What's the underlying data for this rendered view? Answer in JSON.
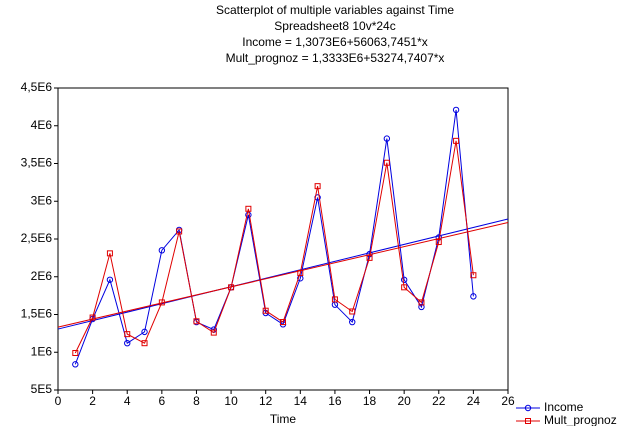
{
  "chart_data": {
    "type": "line",
    "title": "Scatterplot of multiple variables against Time",
    "subtitle": "Spreadsheet8 10v*24c",
    "annotations": [
      "Income = 1,3073E6+56063,7451*x",
      "Mult_prognoz = 1,3333E6+53274,7407*x"
    ],
    "x_label": "Time",
    "x": [
      1,
      2,
      3,
      4,
      5,
      6,
      7,
      8,
      9,
      10,
      11,
      12,
      13,
      14,
      15,
      16,
      17,
      18,
      19,
      20,
      21,
      22,
      23,
      24
    ],
    "series": [
      {
        "name": "Income",
        "color": "#0000e0",
        "marker": "circle",
        "values": [
          840000,
          1440000,
          1960000,
          1120000,
          1270000,
          2350000,
          2620000,
          1400000,
          1300000,
          1860000,
          2820000,
          1520000,
          1370000,
          1980000,
          3050000,
          1630000,
          1400000,
          2300000,
          3830000,
          1960000,
          1600000,
          2520000,
          4210000,
          1740000
        ],
        "fit": {
          "intercept": 1307300,
          "slope": 56063.7451
        }
      },
      {
        "name": "Mult_prognoz",
        "color": "#e00000",
        "marker": "square",
        "values": [
          990000,
          1460000,
          2310000,
          1240000,
          1120000,
          1660000,
          2600000,
          1410000,
          1260000,
          1860000,
          2900000,
          1550000,
          1400000,
          2050000,
          3200000,
          1700000,
          1540000,
          2250000,
          3510000,
          1860000,
          1660000,
          2460000,
          3800000,
          2020000
        ],
        "fit": {
          "intercept": 1333300,
          "slope": 53274.7407
        }
      }
    ],
    "xlim": [
      0,
      26
    ],
    "xticks": [
      0,
      2,
      4,
      6,
      8,
      10,
      12,
      14,
      16,
      18,
      20,
      22,
      24,
      26
    ],
    "ylim": [
      500000,
      4500000
    ],
    "yticks": [
      {
        "value": 500000,
        "label": "5E5"
      },
      {
        "value": 1000000,
        "label": "1E6"
      },
      {
        "value": 1500000,
        "label": "1,5E6"
      },
      {
        "value": 2000000,
        "label": "2E6"
      },
      {
        "value": 2500000,
        "label": "2,5E6"
      },
      {
        "value": 3000000,
        "label": "3E6"
      },
      {
        "value": 3500000,
        "label": "3,5E6"
      },
      {
        "value": 4000000,
        "label": "4E6"
      },
      {
        "value": 4500000,
        "label": "4,5E6"
      }
    ],
    "grid": false,
    "legend": "bottom-right"
  }
}
